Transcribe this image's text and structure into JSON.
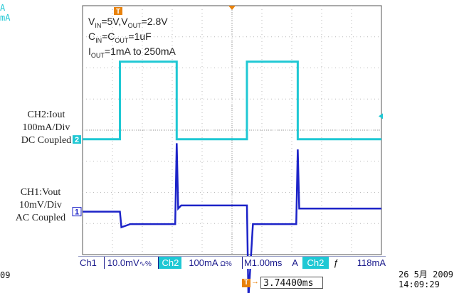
{
  "chart_data": {
    "type": "line",
    "title": "",
    "xlabel": "",
    "ylabel": "",
    "divisions": {
      "x": 10,
      "y": 8
    },
    "grid": true,
    "annotations": [
      "V_IN=5V,V_OUT=2.8V",
      "C_IN=C_OUT=1uF",
      "I_OUT=1mA to 250mA"
    ],
    "series": [
      {
        "name": "CH2:Iout",
        "color": "#1fc8d4",
        "x_div": [
          0,
          1.25,
          1.25,
          3.15,
          3.15,
          5.5,
          5.5,
          7.2,
          7.2,
          10
        ],
        "y_mA": [
          1,
          1,
          250,
          250,
          1,
          1,
          250,
          250,
          1,
          1
        ]
      },
      {
        "name": "CH1:Vout",
        "color": "#1c23c8",
        "x_div": [
          0,
          1.25,
          1.3,
          1.6,
          3.1,
          3.15,
          3.2,
          3.3,
          5.5,
          5.55,
          5.7,
          7.15,
          7.2,
          7.25,
          7.35,
          10
        ],
        "y_mV": [
          0,
          0,
          -5,
          -4,
          -4,
          22,
          1,
          2,
          2,
          -28,
          -4,
          -4,
          20,
          1,
          1,
          1
        ]
      }
    ]
  },
  "labels": {
    "ch2": [
      "CH2:Iout",
      "100mA/Div",
      "DC Coupled"
    ],
    "ch1": [
      "CH1:Vout",
      "10mV/Div",
      "AC Coupled"
    ],
    "ch2_marker": "2",
    "ch1_marker": "1",
    "trig_marker": "T"
  },
  "annotation_lines": {
    "line1": {
      "v": "V",
      "in": "IN",
      "mid": "=5V,V",
      "out": "OUT",
      "tail": "=2.8V"
    },
    "line2": {
      "c": "C",
      "in": "IN",
      "eq": "=C",
      "out": "OUT",
      "tail": "=1uF"
    },
    "line3": {
      "i": "I",
      "out": "OUT",
      "tail": "=1mA to 250mA"
    }
  },
  "status": {
    "ch1_label": "Ch1",
    "ch1_scale": "10.0mV",
    "ch1_symbols": "∿%",
    "ch2_label": "Ch2",
    "ch2_scale": "100mA",
    "ch2_symbols": "Ω%",
    "timebase": "M1.00ms",
    "trig_mode": "A",
    "trig_ch": "Ch2",
    "trig_slope": "ƒ",
    "trig_level": "118mA"
  },
  "corner": {
    "top_left_1": "A",
    "top_left_2": "mA",
    "bottom_left": "09",
    "date": "26 5月  2009",
    "time": "14:09:29"
  },
  "trigger_pos": "3.74400ms",
  "colors": {
    "cyan": "#1fc8d4",
    "blue": "#1c23c8",
    "orange": "#e8820c",
    "grid": "#b9b9b9"
  }
}
